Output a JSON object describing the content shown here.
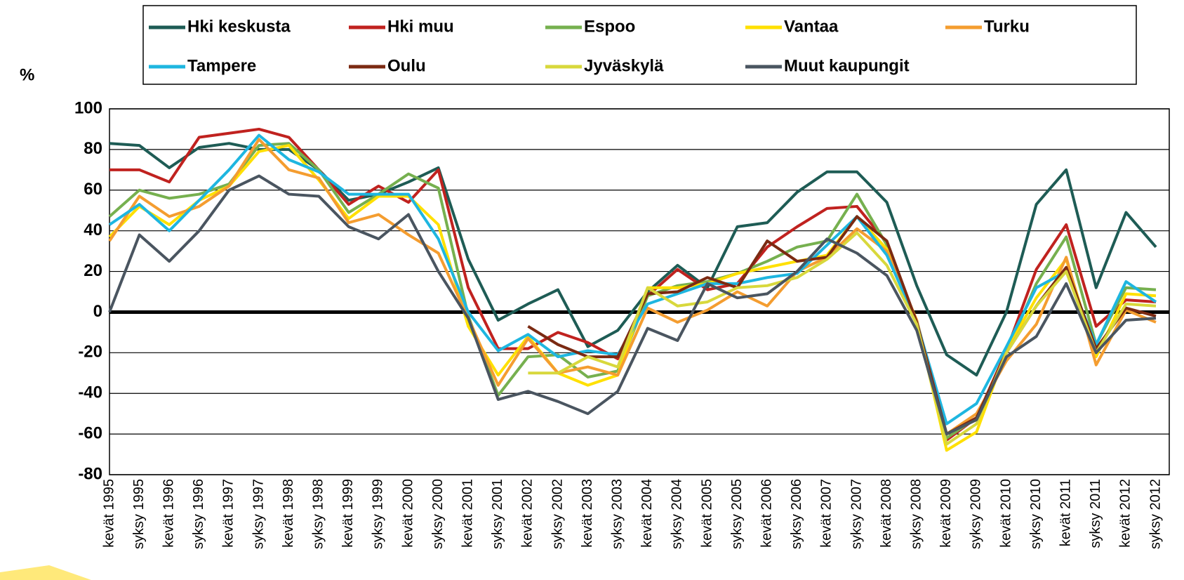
{
  "chart_data": {
    "type": "line",
    "y_label": "%",
    "categories": [
      "kevät 1995",
      "syksy 1995",
      "kevät 1996",
      "syksy 1996",
      "kevät 1997",
      "syksy 1997",
      "kevät 1998",
      "syksy 1998",
      "kevät 1999",
      "syksy 1999",
      "kevät 2000",
      "syksy 2000",
      "kevät 2001",
      "syksy 2001",
      "kevät 2002",
      "syksy 2002",
      "kevät 2003",
      "syksy 2003",
      "kevät 2004",
      "syksy 2004",
      "kevät 2005",
      "syksy 2005",
      "kevät 2006",
      "syksy 2006",
      "kevät 2007",
      "syksy 2007",
      "kevät 2008",
      "syksy 2008",
      "kevät 2009",
      "syksy 2009",
      "kevät 2010",
      "syksy 2010",
      "kevät 2011",
      "syksy 2011",
      "kevät 2012",
      "syksy 2012"
    ],
    "series": [
      {
        "name": "Hki keskusta",
        "color": "#1e5c55",
        "values": [
          83,
          82,
          71,
          81,
          83,
          80,
          80,
          70,
          55,
          58,
          64,
          71,
          26,
          -4,
          4,
          11,
          -17,
          -9,
          10,
          23,
          12,
          42,
          44,
          59,
          69,
          69,
          54,
          13,
          -21,
          -31,
          0,
          53,
          70,
          12,
          49,
          32
        ]
      },
      {
        "name": "Hki muu",
        "color": "#c0221f",
        "values": [
          70,
          70,
          64,
          86,
          88,
          90,
          86,
          70,
          53,
          62,
          54,
          70,
          12,
          -18,
          -18,
          -10,
          -15,
          -23,
          8,
          21,
          11,
          14,
          32,
          42,
          51,
          52,
          34,
          -5,
          -63,
          -52,
          -19,
          21,
          43,
          -7,
          6,
          5
        ]
      },
      {
        "name": "Espoo",
        "color": "#76b04f",
        "values": [
          47,
          60,
          56,
          58,
          63,
          82,
          83,
          70,
          49,
          58,
          68,
          61,
          -2,
          -41,
          -22,
          -21,
          -32,
          -29,
          8,
          13,
          15,
          19,
          25,
          32,
          35,
          58,
          33,
          -5,
          -62,
          -52,
          -20,
          14,
          37,
          -16,
          12,
          11
        ]
      },
      {
        "name": "Vantaa",
        "color": "#ffe000",
        "values": [
          37,
          52,
          43,
          55,
          62,
          79,
          82,
          65,
          46,
          57,
          57,
          43,
          -7,
          -31,
          -12,
          -30,
          -36,
          -31,
          12,
          12,
          14,
          19,
          22,
          25,
          28,
          47,
          31,
          -4,
          -68,
          -59,
          -19,
          7,
          26,
          -22,
          9,
          8
        ]
      },
      {
        "name": "Turku",
        "color": "#f49d30",
        "values": [
          35,
          57,
          47,
          52,
          62,
          85,
          70,
          66,
          44,
          48,
          38,
          29,
          -3,
          -36,
          -13,
          -30,
          -27,
          -31,
          2,
          -5,
          1,
          10,
          3,
          20,
          27,
          41,
          30,
          -4,
          -60,
          -50,
          -24,
          -6,
          27,
          -26,
          1,
          -5
        ]
      },
      {
        "name": "Tampere",
        "color": "#1eb6e0",
        "values": [
          43,
          53,
          40,
          55,
          70,
          87,
          75,
          69,
          58,
          58,
          58,
          36,
          0,
          -19,
          -11,
          -22,
          -19,
          -21,
          4,
          9,
          14,
          14,
          17,
          19,
          33,
          47,
          28,
          -5,
          -55,
          -45,
          -17,
          12,
          20,
          -16,
          15,
          5
        ]
      },
      {
        "name": "Oulu",
        "color": "#7b2a12",
        "values": [
          null,
          null,
          null,
          null,
          null,
          null,
          null,
          null,
          null,
          null,
          null,
          null,
          null,
          null,
          -7,
          -16,
          -22,
          -22,
          9,
          10,
          17,
          12,
          35,
          25,
          27,
          47,
          35,
          -5,
          -60,
          -52,
          -20,
          3,
          22,
          -18,
          2,
          -2
        ]
      },
      {
        "name": "Jyväskylä",
        "color": "#d8d83c",
        "values": [
          null,
          null,
          null,
          null,
          null,
          null,
          null,
          null,
          null,
          null,
          null,
          null,
          null,
          null,
          -30,
          -30,
          -22,
          -27,
          12,
          3,
          5,
          12,
          13,
          17,
          26,
          39,
          23,
          -6,
          -65,
          -55,
          -20,
          3,
          20,
          -20,
          4,
          3
        ]
      },
      {
        "name": "Muut kaupungit",
        "color": "#4a5560",
        "values": [
          0,
          38,
          25,
          40,
          60,
          67,
          58,
          57,
          42,
          36,
          48,
          20,
          -3,
          -43,
          -39,
          -44,
          -50,
          -39,
          -8,
          -14,
          14,
          7,
          9,
          20,
          36,
          29,
          18,
          -9,
          -60,
          -53,
          -22,
          -12,
          14,
          -20,
          -4,
          -3
        ]
      }
    ],
    "ylim": [
      -80,
      100
    ],
    "yticks": [
      -80,
      -60,
      -40,
      -20,
      0,
      20,
      40,
      60,
      80,
      100
    ],
    "grid": true
  }
}
